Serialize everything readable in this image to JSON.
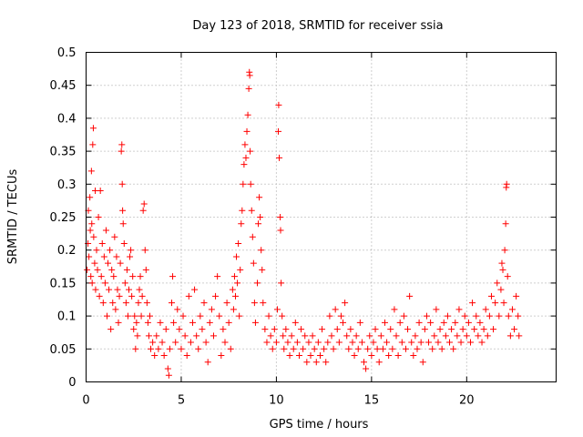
{
  "chart_data": {
    "type": "scatter",
    "title": "Day 123 of 2018, SRMTID for receiver ssia",
    "xlabel": "GPS time / hours",
    "ylabel": "SRMTID / TECUs",
    "xlim": [
      0,
      24.7
    ],
    "ylim": [
      0,
      0.5
    ],
    "xticks": [
      0,
      5,
      10,
      15,
      20
    ],
    "xtick_labels": [
      "0",
      "5",
      "10",
      "15",
      "20"
    ],
    "yticks": [
      0,
      0.05,
      0.1,
      0.15,
      0.2,
      0.25,
      0.3,
      0.35,
      0.4,
      0.45,
      0.5
    ],
    "ytick_labels": [
      "0",
      "0.05",
      "0.1",
      "0.15",
      "0.2",
      "0.25",
      "0.3",
      "0.35",
      "0.4",
      "0.45",
      "0.5"
    ],
    "grid": true,
    "marker": "+",
    "series_color": "#ff0000",
    "points": [
      [
        0.05,
        0.17
      ],
      [
        0.1,
        0.21
      ],
      [
        0.12,
        0.26
      ],
      [
        0.15,
        0.19
      ],
      [
        0.2,
        0.28
      ],
      [
        0.22,
        0.23
      ],
      [
        0.25,
        0.16
      ],
      [
        0.28,
        0.32
      ],
      [
        0.3,
        0.24
      ],
      [
        0.32,
        0.15
      ],
      [
        0.35,
        0.36
      ],
      [
        0.38,
        0.385
      ],
      [
        0.4,
        0.22
      ],
      [
        0.45,
        0.18
      ],
      [
        0.48,
        0.29
      ],
      [
        0.5,
        0.14
      ],
      [
        0.55,
        0.2
      ],
      [
        0.6,
        0.17
      ],
      [
        0.65,
        0.25
      ],
      [
        0.7,
        0.13
      ],
      [
        0.75,
        0.29
      ],
      [
        0.8,
        0.16
      ],
      [
        0.85,
        0.21
      ],
      [
        0.9,
        0.12
      ],
      [
        0.95,
        0.19
      ],
      [
        1.0,
        0.15
      ],
      [
        1.05,
        0.23
      ],
      [
        1.1,
        0.1
      ],
      [
        1.15,
        0.18
      ],
      [
        1.2,
        0.14
      ],
      [
        1.25,
        0.2
      ],
      [
        1.3,
        0.08
      ],
      [
        1.35,
        0.17
      ],
      [
        1.4,
        0.12
      ],
      [
        1.45,
        0.16
      ],
      [
        1.5,
        0.22
      ],
      [
        1.55,
        0.11
      ],
      [
        1.6,
        0.19
      ],
      [
        1.65,
        0.14
      ],
      [
        1.7,
        0.09
      ],
      [
        1.75,
        0.13
      ],
      [
        1.8,
        0.18
      ],
      [
        1.85,
        0.35
      ],
      [
        1.88,
        0.36
      ],
      [
        1.9,
        0.3
      ],
      [
        1.92,
        0.26
      ],
      [
        1.95,
        0.24
      ],
      [
        2.0,
        0.21
      ],
      [
        2.05,
        0.15
      ],
      [
        2.1,
        0.12
      ],
      [
        2.15,
        0.17
      ],
      [
        2.2,
        0.1
      ],
      [
        2.25,
        0.14
      ],
      [
        2.3,
        0.19
      ],
      [
        2.35,
        0.2
      ],
      [
        2.4,
        0.13
      ],
      [
        2.45,
        0.16
      ],
      [
        2.5,
        0.08
      ],
      [
        2.55,
        0.1
      ],
      [
        2.6,
        0.05
      ],
      [
        2.65,
        0.09
      ],
      [
        2.7,
        0.07
      ],
      [
        2.75,
        0.12
      ],
      [
        2.8,
        0.14
      ],
      [
        2.85,
        0.16
      ],
      [
        2.9,
        0.1
      ],
      [
        2.95,
        0.13
      ],
      [
        3.0,
        0.26
      ],
      [
        3.05,
        0.27
      ],
      [
        3.1,
        0.2
      ],
      [
        3.15,
        0.17
      ],
      [
        3.2,
        0.12
      ],
      [
        3.25,
        0.09
      ],
      [
        3.3,
        0.07
      ],
      [
        3.35,
        0.1
      ],
      [
        3.4,
        0.05
      ],
      [
        3.5,
        0.06
      ],
      [
        3.6,
        0.04
      ],
      [
        3.7,
        0.07
      ],
      [
        3.8,
        0.05
      ],
      [
        3.9,
        0.09
      ],
      [
        4.0,
        0.06
      ],
      [
        4.1,
        0.04
      ],
      [
        4.2,
        0.08
      ],
      [
        4.3,
        0.02
      ],
      [
        4.35,
        0.01
      ],
      [
        4.4,
        0.05
      ],
      [
        4.5,
        0.12
      ],
      [
        4.55,
        0.16
      ],
      [
        4.6,
        0.09
      ],
      [
        4.7,
        0.06
      ],
      [
        4.8,
        0.11
      ],
      [
        4.9,
        0.08
      ],
      [
        5.0,
        0.05
      ],
      [
        5.1,
        0.1
      ],
      [
        5.2,
        0.07
      ],
      [
        5.3,
        0.04
      ],
      [
        5.4,
        0.13
      ],
      [
        5.5,
        0.06
      ],
      [
        5.6,
        0.09
      ],
      [
        5.7,
        0.14
      ],
      [
        5.8,
        0.07
      ],
      [
        5.9,
        0.05
      ],
      [
        6.0,
        0.1
      ],
      [
        6.1,
        0.08
      ],
      [
        6.2,
        0.12
      ],
      [
        6.3,
        0.06
      ],
      [
        6.4,
        0.03
      ],
      [
        6.5,
        0.09
      ],
      [
        6.6,
        0.11
      ],
      [
        6.7,
        0.07
      ],
      [
        6.8,
        0.13
      ],
      [
        6.9,
        0.16
      ],
      [
        7.0,
        0.1
      ],
      [
        7.1,
        0.04
      ],
      [
        7.2,
        0.08
      ],
      [
        7.3,
        0.06
      ],
      [
        7.4,
        0.12
      ],
      [
        7.5,
        0.09
      ],
      [
        7.6,
        0.05
      ],
      [
        7.7,
        0.14
      ],
      [
        7.75,
        0.11
      ],
      [
        7.8,
        0.16
      ],
      [
        7.85,
        0.13
      ],
      [
        7.9,
        0.19
      ],
      [
        7.95,
        0.15
      ],
      [
        8.0,
        0.21
      ],
      [
        8.05,
        0.1
      ],
      [
        8.1,
        0.17
      ],
      [
        8.15,
        0.24
      ],
      [
        8.2,
        0.26
      ],
      [
        8.25,
        0.3
      ],
      [
        8.3,
        0.33
      ],
      [
        8.35,
        0.36
      ],
      [
        8.4,
        0.34
      ],
      [
        8.45,
        0.38
      ],
      [
        8.5,
        0.405
      ],
      [
        8.55,
        0.445
      ],
      [
        8.58,
        0.47
      ],
      [
        8.6,
        0.465
      ],
      [
        8.62,
        0.35
      ],
      [
        8.65,
        0.3
      ],
      [
        8.7,
        0.26
      ],
      [
        8.75,
        0.22
      ],
      [
        8.8,
        0.18
      ],
      [
        8.85,
        0.12
      ],
      [
        8.9,
        0.09
      ],
      [
        9.0,
        0.15
      ],
      [
        9.05,
        0.24
      ],
      [
        9.1,
        0.28
      ],
      [
        9.15,
        0.25
      ],
      [
        9.2,
        0.2
      ],
      [
        9.25,
        0.17
      ],
      [
        9.3,
        0.12
      ],
      [
        9.4,
        0.08
      ],
      [
        9.5,
        0.06
      ],
      [
        9.6,
        0.1
      ],
      [
        9.7,
        0.07
      ],
      [
        9.8,
        0.05
      ],
      [
        9.9,
        0.08
      ],
      [
        10.0,
        0.06
      ],
      [
        10.05,
        0.11
      ],
      [
        10.1,
        0.38
      ],
      [
        10.12,
        0.42
      ],
      [
        10.15,
        0.34
      ],
      [
        10.2,
        0.25
      ],
      [
        10.22,
        0.23
      ],
      [
        10.25,
        0.15
      ],
      [
        10.3,
        0.1
      ],
      [
        10.35,
        0.07
      ],
      [
        10.4,
        0.05
      ],
      [
        10.5,
        0.08
      ],
      [
        10.6,
        0.06
      ],
      [
        10.7,
        0.04
      ],
      [
        10.8,
        0.07
      ],
      [
        10.9,
        0.05
      ],
      [
        11.0,
        0.09
      ],
      [
        11.1,
        0.06
      ],
      [
        11.2,
        0.04
      ],
      [
        11.3,
        0.08
      ],
      [
        11.4,
        0.05
      ],
      [
        11.5,
        0.07
      ],
      [
        11.6,
        0.03
      ],
      [
        11.7,
        0.06
      ],
      [
        11.8,
        0.04
      ],
      [
        11.9,
        0.07
      ],
      [
        12.0,
        0.05
      ],
      [
        12.1,
        0.03
      ],
      [
        12.2,
        0.06
      ],
      [
        12.3,
        0.04
      ],
      [
        12.4,
        0.08
      ],
      [
        12.5,
        0.05
      ],
      [
        12.6,
        0.03
      ],
      [
        12.7,
        0.06
      ],
      [
        12.8,
        0.1
      ],
      [
        12.9,
        0.07
      ],
      [
        13.0,
        0.05
      ],
      [
        13.1,
        0.11
      ],
      [
        13.2,
        0.08
      ],
      [
        13.3,
        0.06
      ],
      [
        13.4,
        0.1
      ],
      [
        13.5,
        0.09
      ],
      [
        13.6,
        0.12
      ],
      [
        13.7,
        0.07
      ],
      [
        13.8,
        0.05
      ],
      [
        13.9,
        0.08
      ],
      [
        14.0,
        0.06
      ],
      [
        14.1,
        0.04
      ],
      [
        14.2,
        0.07
      ],
      [
        14.3,
        0.05
      ],
      [
        14.4,
        0.09
      ],
      [
        14.5,
        0.06
      ],
      [
        14.6,
        0.03
      ],
      [
        14.7,
        0.02
      ],
      [
        14.8,
        0.05
      ],
      [
        14.9,
        0.07
      ],
      [
        15.0,
        0.04
      ],
      [
        15.1,
        0.06
      ],
      [
        15.2,
        0.08
      ],
      [
        15.3,
        0.05
      ],
      [
        15.4,
        0.03
      ],
      [
        15.5,
        0.07
      ],
      [
        15.6,
        0.05
      ],
      [
        15.7,
        0.09
      ],
      [
        15.8,
        0.06
      ],
      [
        15.9,
        0.04
      ],
      [
        16.0,
        0.08
      ],
      [
        16.1,
        0.05
      ],
      [
        16.2,
        0.11
      ],
      [
        16.3,
        0.07
      ],
      [
        16.4,
        0.04
      ],
      [
        16.5,
        0.09
      ],
      [
        16.6,
        0.06
      ],
      [
        16.7,
        0.1
      ],
      [
        16.8,
        0.05
      ],
      [
        16.9,
        0.08
      ],
      [
        17.0,
        0.13
      ],
      [
        17.1,
        0.06
      ],
      [
        17.2,
        0.04
      ],
      [
        17.3,
        0.07
      ],
      [
        17.4,
        0.05
      ],
      [
        17.5,
        0.09
      ],
      [
        17.6,
        0.06
      ],
      [
        17.7,
        0.03
      ],
      [
        17.8,
        0.08
      ],
      [
        17.9,
        0.1
      ],
      [
        18.0,
        0.06
      ],
      [
        18.1,
        0.09
      ],
      [
        18.2,
        0.05
      ],
      [
        18.3,
        0.07
      ],
      [
        18.4,
        0.11
      ],
      [
        18.5,
        0.06
      ],
      [
        18.6,
        0.08
      ],
      [
        18.7,
        0.05
      ],
      [
        18.8,
        0.09
      ],
      [
        18.9,
        0.07
      ],
      [
        19.0,
        0.1
      ],
      [
        19.1,
        0.06
      ],
      [
        19.2,
        0.08
      ],
      [
        19.3,
        0.05
      ],
      [
        19.4,
        0.09
      ],
      [
        19.5,
        0.07
      ],
      [
        19.6,
        0.11
      ],
      [
        19.7,
        0.06
      ],
      [
        19.8,
        0.08
      ],
      [
        19.9,
        0.1
      ],
      [
        20.0,
        0.07
      ],
      [
        20.1,
        0.09
      ],
      [
        20.2,
        0.06
      ],
      [
        20.3,
        0.12
      ],
      [
        20.4,
        0.08
      ],
      [
        20.5,
        0.1
      ],
      [
        20.6,
        0.07
      ],
      [
        20.7,
        0.09
      ],
      [
        20.8,
        0.06
      ],
      [
        20.9,
        0.08
      ],
      [
        21.0,
        0.11
      ],
      [
        21.1,
        0.07
      ],
      [
        21.2,
        0.1
      ],
      [
        21.3,
        0.13
      ],
      [
        21.4,
        0.08
      ],
      [
        21.5,
        0.12
      ],
      [
        21.6,
        0.15
      ],
      [
        21.7,
        0.1
      ],
      [
        21.8,
        0.14
      ],
      [
        21.85,
        0.18
      ],
      [
        21.9,
        0.17
      ],
      [
        21.95,
        0.12
      ],
      [
        22.0,
        0.2
      ],
      [
        22.05,
        0.24
      ],
      [
        22.08,
        0.295
      ],
      [
        22.1,
        0.3
      ],
      [
        22.15,
        0.16
      ],
      [
        22.2,
        0.1
      ],
      [
        22.3,
        0.07
      ],
      [
        22.4,
        0.11
      ],
      [
        22.5,
        0.08
      ],
      [
        22.6,
        0.13
      ],
      [
        22.7,
        0.1
      ],
      [
        22.75,
        0.07
      ]
    ]
  }
}
